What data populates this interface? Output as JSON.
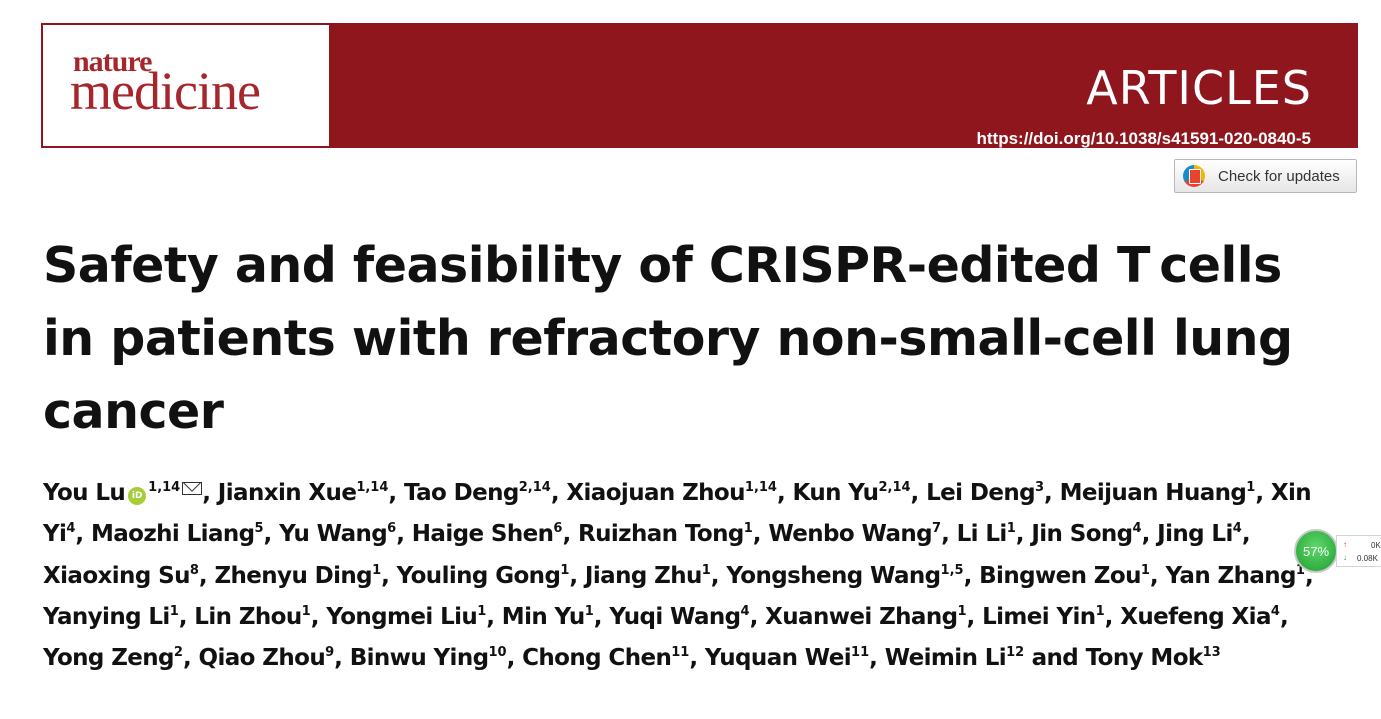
{
  "banner": {
    "logo_top": "nature",
    "logo_bottom": "medicine",
    "section": "ARTICLES",
    "doi": "https://doi.org/10.1038/s41591-020-0840-5",
    "colors": {
      "banner": "#8f161d",
      "logo_text": "#a7262c"
    }
  },
  "updates_button": {
    "label": "Check for updates",
    "icon": "crossmark-icon"
  },
  "title": "Safety and feasibility of CRISPR-edited T cells in patients with refractory non-small-cell lung cancer",
  "authors": [
    {
      "name": "You Lu",
      "sup": "1,14",
      "orcid": true,
      "corresponding": true
    },
    {
      "name": "Jianxin Xue",
      "sup": "1,14"
    },
    {
      "name": "Tao Deng",
      "sup": "2,14"
    },
    {
      "name": "Xiaojuan Zhou",
      "sup": "1,14"
    },
    {
      "name": "Kun Yu",
      "sup": "2,14"
    },
    {
      "name": "Lei Deng",
      "sup": "3"
    },
    {
      "name": "Meijuan Huang",
      "sup": "1"
    },
    {
      "name": "Xin Yi",
      "sup": "4"
    },
    {
      "name": "Maozhi Liang",
      "sup": "5"
    },
    {
      "name": "Yu Wang",
      "sup": "6"
    },
    {
      "name": "Haige Shen",
      "sup": "6"
    },
    {
      "name": "Ruizhan Tong",
      "sup": "1"
    },
    {
      "name": "Wenbo Wang",
      "sup": "7"
    },
    {
      "name": "Li Li",
      "sup": "1"
    },
    {
      "name": "Jin Song",
      "sup": "4"
    },
    {
      "name": "Jing Li",
      "sup": "4"
    },
    {
      "name": "Xiaoxing Su",
      "sup": "8"
    },
    {
      "name": "Zhenyu Ding",
      "sup": "1"
    },
    {
      "name": "Youling Gong",
      "sup": "1"
    },
    {
      "name": "Jiang Zhu",
      "sup": "1"
    },
    {
      "name": "Yongsheng Wang",
      "sup": "1,5"
    },
    {
      "name": "Bingwen Zou",
      "sup": "1"
    },
    {
      "name": "Yan Zhang",
      "sup": "1"
    },
    {
      "name": "Yanying Li",
      "sup": "1"
    },
    {
      "name": "Lin Zhou",
      "sup": "1"
    },
    {
      "name": "Yongmei Liu",
      "sup": "1"
    },
    {
      "name": "Min Yu",
      "sup": "1"
    },
    {
      "name": "Yuqi Wang",
      "sup": "4"
    },
    {
      "name": "Xuanwei Zhang",
      "sup": "1"
    },
    {
      "name": "Limei Yin",
      "sup": "1"
    },
    {
      "name": "Xuefeng Xia",
      "sup": "4"
    },
    {
      "name": "Yong Zeng",
      "sup": "2"
    },
    {
      "name": "Qiao Zhou",
      "sup": "9"
    },
    {
      "name": "Binwu Ying",
      "sup": "10"
    },
    {
      "name": "Chong Chen",
      "sup": "11"
    },
    {
      "name": "Yuquan Wei",
      "sup": "11"
    },
    {
      "name": "Weimin Li",
      "sup": "12"
    },
    {
      "name": "Tony Mok",
      "sup": "13"
    }
  ],
  "authors_joiner": "and",
  "orcid_label": "iD",
  "network_monitor": {
    "percent": "57%",
    "up_value": "0K",
    "down_value": "0.08K",
    "up_arrow": "↑",
    "down_arrow": "↓"
  }
}
